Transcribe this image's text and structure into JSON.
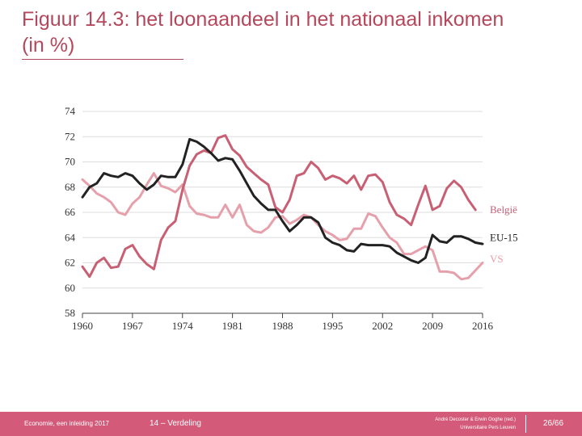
{
  "slide": {
    "title_line1": "Figuur 14.3: het loonaandeel in het nationaal inkomen",
    "title_line2": "(in %)"
  },
  "footer": {
    "course": "Economie, een inleiding 2017",
    "chapter": "14 – Verdeling",
    "authors_line1": "André Decoster & Erwin Ooghe (red.)",
    "authors_line2": "Universitaire Pers Leuven",
    "page": "26/66"
  },
  "colors": {
    "belgie": "#c85f73",
    "eu15": "#222222",
    "vs": "#e6a0ab",
    "accent": "#d35a78",
    "grid": "#dddddd"
  },
  "chart_data": {
    "type": "line",
    "title": "",
    "xlabel": "",
    "ylabel": "",
    "ylim": [
      58,
      74
    ],
    "xlim": [
      1960,
      2016
    ],
    "yticks": [
      58,
      60,
      62,
      64,
      66,
      68,
      70,
      72,
      74
    ],
    "xticks": [
      1960,
      1967,
      1974,
      1981,
      1988,
      1995,
      2002,
      2009,
      2016
    ],
    "grid": true,
    "x": [
      1960,
      1961,
      1962,
      1963,
      1964,
      1965,
      1966,
      1967,
      1968,
      1969,
      1970,
      1971,
      1972,
      1973,
      1974,
      1975,
      1976,
      1977,
      1978,
      1979,
      1980,
      1981,
      1982,
      1983,
      1984,
      1985,
      1986,
      1987,
      1988,
      1989,
      1990,
      1991,
      1992,
      1993,
      1994,
      1995,
      1996,
      1997,
      1998,
      1999,
      2000,
      2001,
      2002,
      2003,
      2004,
      2005,
      2006,
      2007,
      2008,
      2009,
      2010,
      2011,
      2012,
      2013,
      2014,
      2015,
      2016
    ],
    "series": [
      {
        "name": "België",
        "values": [
          61.7,
          60.9,
          62.0,
          62.4,
          61.6,
          61.7,
          63.1,
          63.4,
          62.5,
          61.9,
          61.5,
          63.8,
          64.8,
          65.3,
          67.8,
          69.7,
          70.6,
          70.9,
          70.7,
          71.9,
          72.1,
          71.0,
          70.5,
          69.6,
          69.1,
          68.6,
          68.2,
          66.4,
          66.0,
          67.0,
          68.9,
          69.1,
          70.0,
          69.5,
          68.6,
          68.9,
          68.7,
          68.3,
          68.9,
          67.8,
          68.9,
          69.0,
          68.4,
          66.8,
          65.8,
          65.5,
          65.0,
          66.6,
          68.1,
          66.2,
          66.5,
          67.9,
          68.5,
          68.0,
          67.0,
          66.2,
          null
        ]
      },
      {
        "name": "EU-15",
        "values": [
          67.2,
          68.0,
          68.3,
          69.1,
          68.9,
          68.8,
          69.1,
          68.9,
          68.3,
          67.8,
          68.2,
          68.9,
          68.8,
          68.8,
          69.8,
          71.8,
          71.6,
          71.2,
          70.7,
          70.1,
          70.3,
          70.2,
          69.3,
          68.3,
          67.3,
          66.7,
          66.2,
          66.2,
          65.3,
          64.5,
          65.0,
          65.6,
          65.6,
          65.2,
          64.0,
          63.6,
          63.4,
          63.0,
          62.9,
          63.5,
          63.4,
          63.4,
          63.4,
          63.3,
          62.8,
          62.5,
          62.2,
          62.0,
          62.4,
          64.2,
          63.7,
          63.6,
          64.1,
          64.1,
          63.9,
          63.6,
          63.5
        ]
      },
      {
        "name": "VS",
        "values": [
          68.6,
          68.1,
          67.5,
          67.2,
          66.8,
          66.0,
          65.8,
          66.7,
          67.2,
          68.2,
          69.1,
          68.1,
          67.9,
          67.6,
          68.2,
          66.5,
          65.9,
          65.8,
          65.6,
          65.6,
          66.6,
          65.6,
          66.6,
          65.0,
          64.5,
          64.4,
          64.8,
          65.6,
          65.7,
          65.1,
          65.4,
          65.8,
          65.6,
          65.0,
          64.5,
          64.2,
          63.8,
          63.9,
          64.7,
          64.7,
          65.9,
          65.7,
          64.8,
          64.0,
          63.6,
          62.7,
          62.7,
          63.0,
          63.3,
          63.0,
          61.3,
          61.3,
          61.2,
          60.7,
          60.8,
          61.4,
          62.0
        ]
      }
    ],
    "series_labels": [
      "België",
      "EU-15",
      "VS"
    ]
  }
}
